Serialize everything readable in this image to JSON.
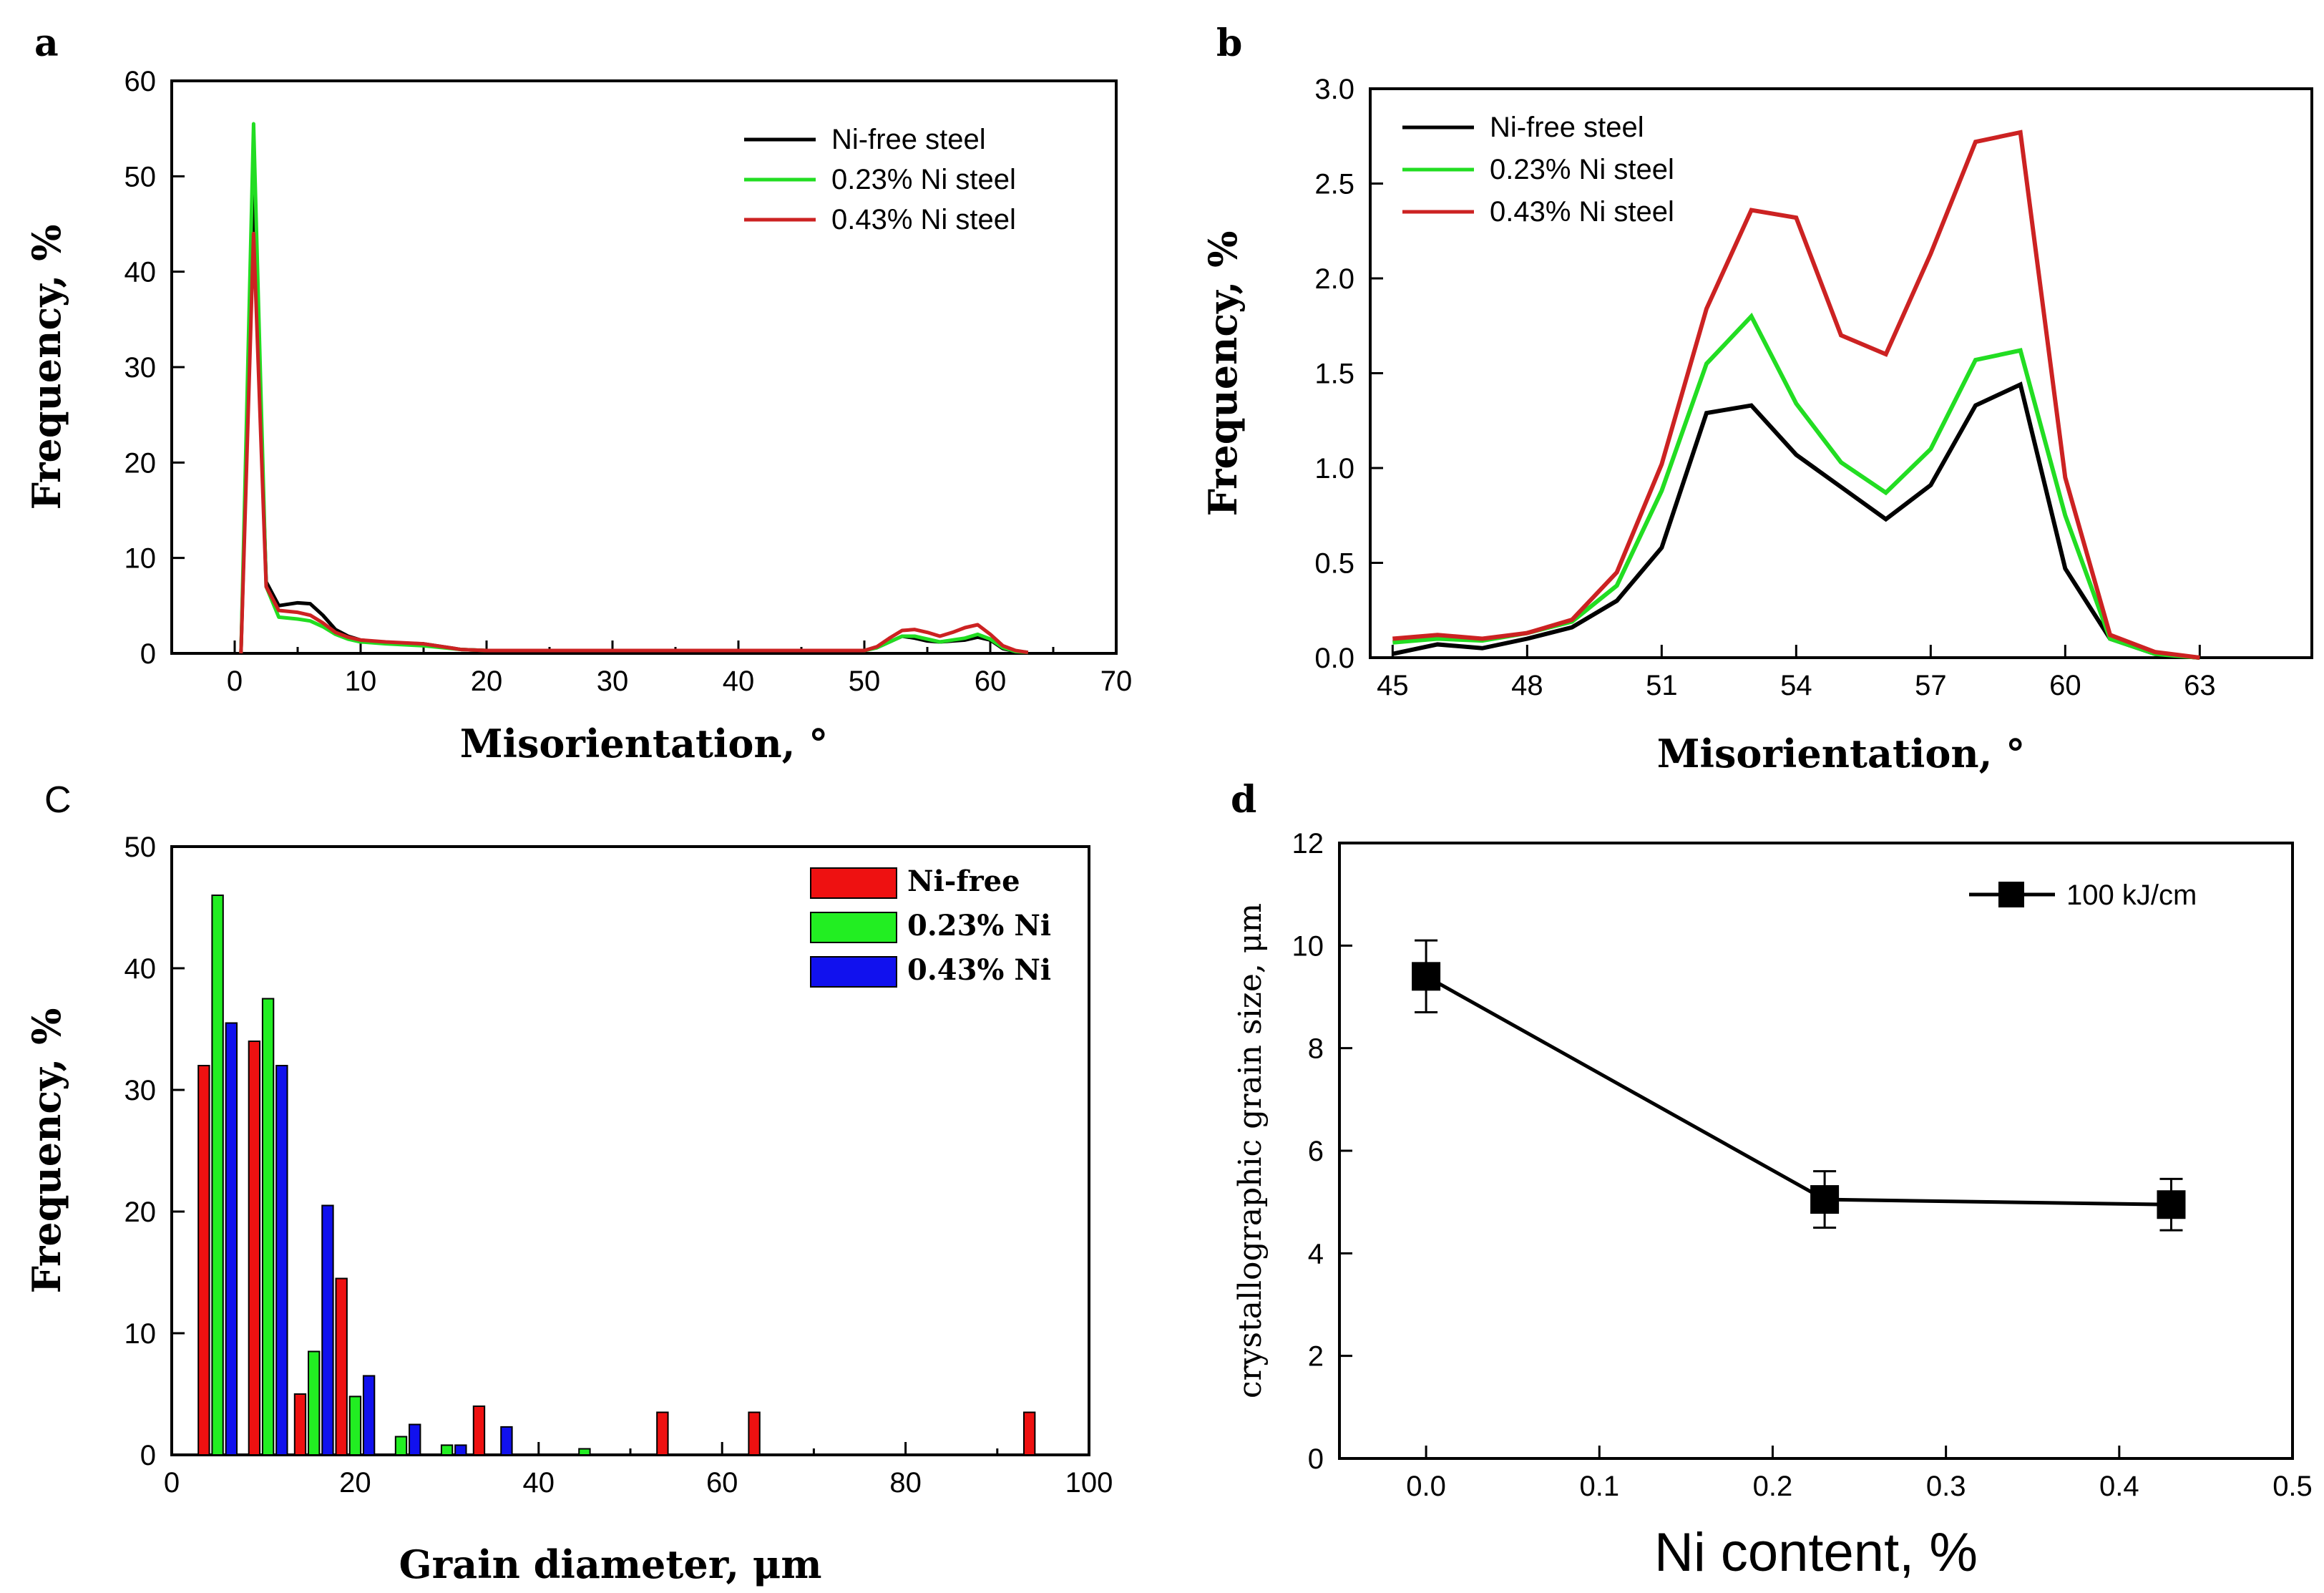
{
  "chart_data": [
    {
      "panel": "a",
      "type": "line",
      "title": "a",
      "xlabel": "Misorientation, °",
      "ylabel": "Frequency, %",
      "xlim": [
        -5,
        70
      ],
      "ylim": [
        0,
        60
      ],
      "xticks": [
        0,
        10,
        20,
        30,
        40,
        50,
        60,
        70
      ],
      "yticks": [
        0,
        10,
        20,
        30,
        40,
        50,
        60
      ],
      "legend_position": "top-right",
      "x": [
        0.5,
        1.5,
        2.5,
        3.5,
        5,
        6,
        7,
        8,
        9,
        10,
        12,
        15,
        18,
        20,
        30,
        40,
        50,
        51,
        52,
        53,
        54,
        55,
        56,
        57,
        58,
        59,
        60,
        61,
        62,
        63
      ],
      "series": [
        {
          "name": "Ni-free steel",
          "color": "#000000",
          "values": [
            0,
            48,
            7.5,
            5,
            5.3,
            5.2,
            4,
            2.5,
            1.8,
            1.4,
            1.1,
            1.0,
            0.4,
            0.3,
            0.3,
            0.3,
            0.3,
            0.6,
            1.2,
            1.8,
            1.6,
            1.3,
            1.2,
            1.3,
            1.4,
            1.7,
            1.4,
            0.5,
            0.2,
            0.1
          ]
        },
        {
          "name": "0.23% Ni steel",
          "color": "#22dd22",
          "values": [
            0,
            55.5,
            7.0,
            3.8,
            3.6,
            3.4,
            2.8,
            2.0,
            1.5,
            1.2,
            1.0,
            0.8,
            0.4,
            0.3,
            0.3,
            0.3,
            0.3,
            0.6,
            1.2,
            1.8,
            1.8,
            1.5,
            1.2,
            1.4,
            1.6,
            2.0,
            1.5,
            0.6,
            0.2,
            0.1
          ]
        },
        {
          "name": "0.43% Ni steel",
          "color": "#cc2222",
          "values": [
            0,
            44,
            7.0,
            4.5,
            4.3,
            4.0,
            3.2,
            2.2,
            1.7,
            1.4,
            1.2,
            1.0,
            0.4,
            0.3,
            0.3,
            0.3,
            0.3,
            0.7,
            1.6,
            2.4,
            2.5,
            2.2,
            1.8,
            2.2,
            2.7,
            3.0,
            2.0,
            0.8,
            0.3,
            0.1
          ]
        }
      ]
    },
    {
      "panel": "b",
      "type": "line",
      "title": "b",
      "xlabel": "Misorientation, °",
      "ylabel": "Frequency, %",
      "xlim": [
        44.5,
        65.5
      ],
      "ylim": [
        0,
        3.0
      ],
      "xticks": [
        45,
        48,
        51,
        54,
        57,
        60,
        63
      ],
      "yticks": [
        0.0,
        0.5,
        1.0,
        1.5,
        2.0,
        2.5,
        3.0
      ],
      "legend_position": "top-left",
      "x": [
        45,
        46,
        47,
        48,
        49,
        50,
        51,
        52,
        53,
        54,
        55,
        56,
        57,
        58,
        59,
        60,
        61,
        62,
        63
      ],
      "series": [
        {
          "name": "Ni-free steel",
          "color": "#000000",
          "values": [
            0.02,
            0.07,
            0.05,
            0.1,
            0.16,
            0.3,
            0.58,
            1.29,
            1.33,
            1.07,
            0.9,
            0.73,
            0.91,
            1.33,
            1.44,
            0.47,
            0.1,
            0.02,
            0.0
          ]
        },
        {
          "name": "0.23% Ni steel",
          "color": "#22dd22",
          "values": [
            0.08,
            0.1,
            0.09,
            0.13,
            0.19,
            0.38,
            0.88,
            1.55,
            1.8,
            1.34,
            1.03,
            0.87,
            1.1,
            1.57,
            1.62,
            0.75,
            0.1,
            0.02,
            0.0
          ]
        },
        {
          "name": "0.43% Ni steel",
          "color": "#cc2222",
          "values": [
            0.1,
            0.12,
            0.1,
            0.13,
            0.2,
            0.45,
            1.02,
            1.84,
            2.36,
            2.32,
            1.7,
            1.6,
            2.13,
            2.72,
            2.77,
            0.95,
            0.12,
            0.03,
            0.0
          ]
        }
      ]
    },
    {
      "panel": "C",
      "type": "bar",
      "title": "C",
      "xlabel": "Grain diameter, μm",
      "ylabel": "Frequency, %",
      "xlim": [
        0,
        100
      ],
      "ylim": [
        0,
        50
      ],
      "xticks": [
        0,
        20,
        40,
        60,
        80,
        100
      ],
      "yticks": [
        0,
        10,
        20,
        30,
        40,
        50
      ],
      "legend_position": "top-right",
      "bar_width": 1.2,
      "series": [
        {
          "name": "Ni-free",
          "color": "#ee1111",
          "x": [
            3.5,
            9,
            14,
            18.5,
            33.5,
            53.5,
            63.5,
            93.5
          ],
          "values": [
            32,
            34,
            5,
            14.5,
            4,
            3.5,
            3.5,
            3.5
          ]
        },
        {
          "name": "0.23% Ni",
          "color": "#22ee22",
          "x": [
            5,
            10.5,
            15.5,
            20,
            25,
            30,
            45
          ],
          "values": [
            46,
            37.5,
            8.5,
            4.8,
            1.5,
            0.8,
            0.5
          ]
        },
        {
          "name": "0.43% Ni",
          "color": "#1111ee",
          "x": [
            6.5,
            12,
            17,
            21.5,
            26.5,
            31.5,
            36.5
          ],
          "values": [
            35.5,
            32,
            20.5,
            6.5,
            2.5,
            0.8,
            2.3
          ]
        }
      ]
    },
    {
      "panel": "d",
      "type": "line",
      "title": "d",
      "xlabel": "Ni content, %",
      "ylabel": "crystallographic grain size, μm",
      "xlim": [
        -0.05,
        0.5
      ],
      "ylim": [
        0,
        12
      ],
      "xticks": [
        0.0,
        0.1,
        0.2,
        0.3,
        0.4,
        0.5
      ],
      "yticks": [
        0,
        2,
        4,
        6,
        8,
        10,
        12
      ],
      "legend_position": "top-right",
      "series": [
        {
          "name": "100 kJ/cm",
          "color": "#000000",
          "x": [
            0.0,
            0.23,
            0.43
          ],
          "values": [
            9.4,
            5.05,
            4.95
          ],
          "error": [
            0.7,
            0.55,
            0.5
          ]
        }
      ]
    }
  ]
}
